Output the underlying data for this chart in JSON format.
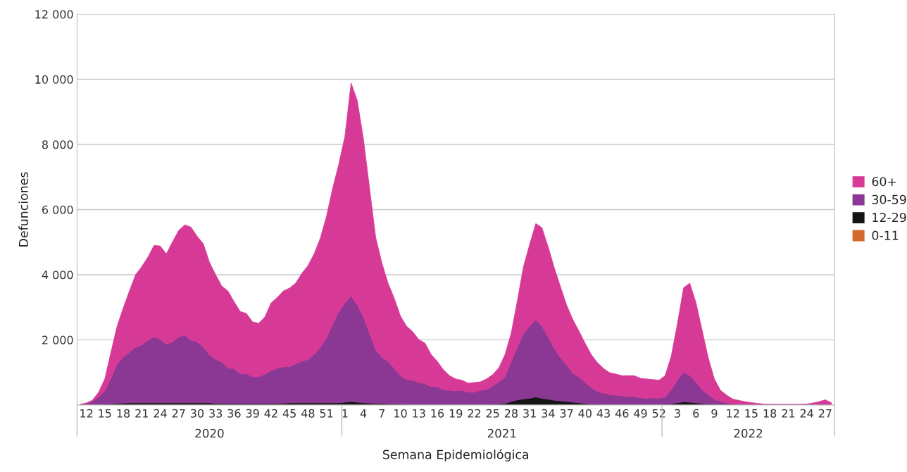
{
  "chart_data": {
    "type": "area",
    "stacked": true,
    "xlabel": "Semana Epidemiológica",
    "ylabel": "Defunciones",
    "categories": [
      null,
      "12",
      null,
      null,
      "15",
      null,
      null,
      "18",
      null,
      null,
      "21",
      null,
      null,
      "24",
      null,
      null,
      "27",
      null,
      null,
      "30",
      null,
      null,
      "33",
      null,
      null,
      "36",
      null,
      null,
      "39",
      null,
      null,
      "42",
      null,
      null,
      "45",
      null,
      null,
      "48",
      null,
      null,
      "51",
      null,
      null,
      "1",
      null,
      null,
      "4",
      null,
      null,
      "7",
      null,
      null,
      "10",
      null,
      null,
      "13",
      null,
      null,
      "16",
      null,
      null,
      "19",
      null,
      null,
      "22",
      null,
      null,
      "25",
      null,
      null,
      "28",
      null,
      null,
      "31",
      null,
      null,
      "34",
      null,
      null,
      "37",
      null,
      null,
      "40",
      null,
      null,
      "43",
      null,
      null,
      "46",
      null,
      null,
      "49",
      null,
      null,
      "52",
      null,
      null,
      "3",
      null,
      null,
      "6",
      null,
      null,
      "9",
      null,
      null,
      "12",
      null,
      null,
      "15",
      null,
      null,
      "18",
      null,
      null,
      "21",
      null,
      null,
      "24",
      null,
      null,
      "27",
      null
    ],
    "series": [
      {
        "name": "0-11",
        "color": "#d4692c",
        "values": [
          0,
          0,
          0,
          5,
          5,
          5,
          5,
          5,
          5,
          5,
          5,
          5,
          5,
          5,
          5,
          5,
          5,
          5,
          5,
          5,
          5,
          5,
          5,
          5,
          5,
          5,
          5,
          5,
          5,
          5,
          5,
          5,
          5,
          5,
          5,
          5,
          5,
          5,
          5,
          5,
          5,
          5,
          5,
          5,
          5,
          5,
          5,
          5,
          5,
          5,
          5,
          5,
          5,
          5,
          5,
          5,
          5,
          5,
          5,
          5,
          5,
          5,
          5,
          5,
          5,
          5,
          5,
          5,
          5,
          5,
          5,
          5,
          5,
          5,
          5,
          5,
          5,
          5,
          5,
          5,
          5,
          5,
          5,
          5,
          5,
          5,
          5,
          5,
          5,
          5,
          5,
          5,
          5,
          5,
          5,
          5,
          5,
          5,
          5,
          5,
          5,
          5,
          5,
          5,
          5,
          5,
          5,
          0,
          0,
          0,
          0,
          0,
          0,
          0,
          0,
          0,
          0,
          0,
          0,
          0,
          0,
          0,
          0
        ]
      },
      {
        "name": "12-29",
        "color": "#151515",
        "values": [
          0,
          0,
          5,
          10,
          20,
          30,
          40,
          50,
          60,
          60,
          60,
          60,
          60,
          60,
          60,
          60,
          60,
          60,
          60,
          60,
          60,
          60,
          40,
          40,
          40,
          40,
          40,
          40,
          40,
          40,
          40,
          40,
          40,
          40,
          60,
          60,
          60,
          60,
          60,
          60,
          60,
          60,
          60,
          80,
          100,
          80,
          60,
          50,
          40,
          40,
          30,
          30,
          20,
          20,
          15,
          15,
          10,
          10,
          10,
          10,
          10,
          10,
          10,
          10,
          10,
          10,
          10,
          20,
          30,
          40,
          100,
          150,
          180,
          200,
          240,
          200,
          170,
          140,
          120,
          100,
          80,
          60,
          40,
          25,
          20,
          15,
          10,
          10,
          10,
          10,
          10,
          10,
          10,
          10,
          10,
          10,
          30,
          60,
          90,
          80,
          60,
          40,
          20,
          10,
          5,
          5,
          5,
          5,
          5,
          5,
          5,
          5,
          5,
          5,
          5,
          5,
          5,
          5,
          5,
          5,
          5,
          5,
          5
        ]
      },
      {
        "name": "30-59",
        "color": "#8b3894",
        "values": [
          20,
          40,
          105,
          235,
          405,
          785,
          1205,
          1415,
          1555,
          1705,
          1775,
          1925,
          2025,
          1945,
          1805,
          1875,
          2025,
          2075,
          1925,
          1875,
          1705,
          1485,
          1355,
          1275,
          1095,
          1075,
          905,
          925,
          815,
          815,
          905,
          1015,
          1075,
          1125,
          1105,
          1205,
          1275,
          1335,
          1485,
          1705,
          1985,
          2415,
          2785,
          3045,
          3245,
          2985,
          2635,
          2145,
          1645,
          1425,
          1305,
          1085,
          875,
          755,
          740,
          670,
          635,
          545,
          545,
          455,
          435,
          415,
          435,
          375,
          375,
          435,
          455,
          555,
          675,
          815,
          1235,
          1615,
          2015,
          2215,
          2365,
          2215,
          1925,
          1585,
          1325,
          1125,
          885,
          795,
          645,
          510,
          385,
          350,
          305,
          285,
          265,
          245,
          245,
          205,
          185,
          205,
          195,
          225,
          435,
          695,
          915,
          825,
          645,
          425,
          295,
          155,
          100,
          50,
          30,
          25,
          20,
          15,
          10,
          10,
          10,
          10,
          10,
          10,
          10,
          10,
          10,
          15,
          25,
          35,
          15
        ]
      },
      {
        "name": "60+",
        "color": "#d63a96",
        "values": [
          0,
          20,
          40,
          140,
          370,
          800,
          1170,
          1510,
          1880,
          2230,
          2410,
          2550,
          2810,
          2870,
          2770,
          3070,
          3270,
          3390,
          3470,
          3240,
          3180,
          2830,
          2600,
          2330,
          2360,
          2050,
          1920,
          1840,
          1690,
          1650,
          1750,
          2070,
          2180,
          2330,
          2420,
          2470,
          2700,
          2880,
          3090,
          3350,
          3740,
          4170,
          4540,
          5120,
          6540,
          6280,
          5470,
          4450,
          3450,
          2890,
          2400,
          2160,
          1840,
          1640,
          1490,
          1320,
          1250,
          990,
          780,
          610,
          450,
          370,
          310,
          280,
          300,
          260,
          330,
          350,
          430,
          690,
          860,
          1430,
          2050,
          2510,
          2960,
          3020,
          2760,
          2480,
          2180,
          1840,
          1660,
          1410,
          1210,
          1010,
          890,
          750,
          670,
          650,
          620,
          640,
          640,
          600,
          600,
          560,
          550,
          660,
          1030,
          1740,
          2590,
          2830,
          2440,
          1830,
          1130,
          630,
          340,
          240,
          140,
          110,
          75,
          50,
          35,
          15,
          5,
          5,
          5,
          5,
          5,
          5,
          15,
          40,
          70,
          120,
          50
        ]
      }
    ],
    "ylim": [
      0,
      12000
    ],
    "yticks": [
      {
        "value": 2000,
        "label": "2 000"
      },
      {
        "value": 4000,
        "label": "4 000"
      },
      {
        "value": 6000,
        "label": "6 000"
      },
      {
        "value": 8000,
        "label": "8 000"
      },
      {
        "value": 10000,
        "label": "10 000"
      },
      {
        "value": 12000,
        "label": "12 000"
      }
    ],
    "grid": "y",
    "legend": "right",
    "annotations": [
      "2020",
      "2021",
      "2022"
    ]
  }
}
